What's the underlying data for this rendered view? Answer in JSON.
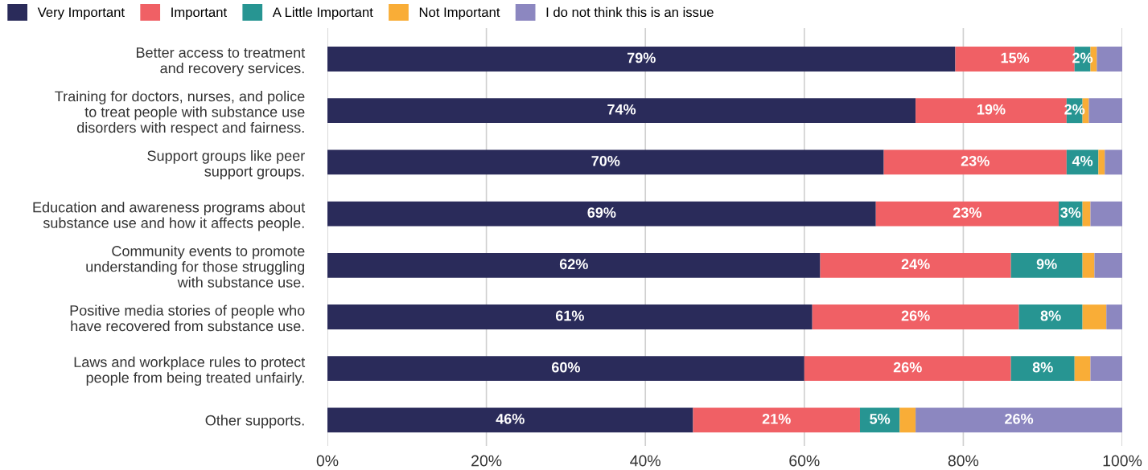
{
  "chart_data": {
    "type": "bar",
    "orientation": "horizontal",
    "stacked": true,
    "categories": [
      "Better access to treatment\nand recovery services.",
      "Training for doctors, nurses, and police\nto treat people with substance use\ndisorders with respect and fairness.",
      "Support groups like peer\nsupport groups.",
      "Education and awareness programs about\nsubstance use and how it affects people.",
      "Community events to promote\nunderstanding for those struggling\nwith substance use.",
      "Positive media stories of people who\nhave recovered from substance use.",
      "Laws and workplace rules to protect\npeople from being treated unfairly.",
      "Other supports."
    ],
    "series": [
      {
        "name": "Very Important",
        "color": "#2a2b5a",
        "values": [
          79,
          74,
          70,
          69,
          62,
          61,
          60,
          46
        ],
        "value_labels": [
          "79%",
          "74%",
          "70%",
          "69%",
          "62%",
          "61%",
          "60%",
          "46%"
        ]
      },
      {
        "name": "Important",
        "color": "#f06065",
        "values": [
          15,
          19,
          23,
          23,
          24,
          26,
          26,
          21
        ],
        "value_labels": [
          "15%",
          "19%",
          "23%",
          "23%",
          "24%",
          "26%",
          "26%",
          "21%"
        ]
      },
      {
        "name": "A Little Important",
        "color": "#279592",
        "values": [
          2,
          2,
          4,
          3,
          9,
          8,
          8,
          5
        ],
        "value_labels": [
          "2%",
          "2%",
          "4%",
          "3%",
          "9%",
          "8%",
          "8%",
          "5%"
        ]
      },
      {
        "name": "Not Important",
        "color": "#f9ad37",
        "values": [
          0.8,
          0.8,
          0.8,
          1,
          1.5,
          3,
          2,
          2
        ]
      },
      {
        "name": "I do not think this is an issue",
        "color": "#8c87c0",
        "values": [
          3.2,
          4.2,
          2.2,
          4,
          3.5,
          2,
          4,
          26
        ],
        "value_labels": [
          null,
          null,
          null,
          null,
          null,
          null,
          null,
          "26%"
        ]
      }
    ],
    "xlim": [
      0,
      100
    ],
    "xticks": [
      {
        "value": 0,
        "label": "0%"
      },
      {
        "value": 20,
        "label": "20%"
      },
      {
        "value": 40,
        "label": "40%"
      },
      {
        "value": 60,
        "label": "60%"
      },
      {
        "value": 80,
        "label": "80%"
      },
      {
        "value": 100,
        "label": "100%"
      }
    ],
    "grid": "x",
    "legend": "top left"
  }
}
